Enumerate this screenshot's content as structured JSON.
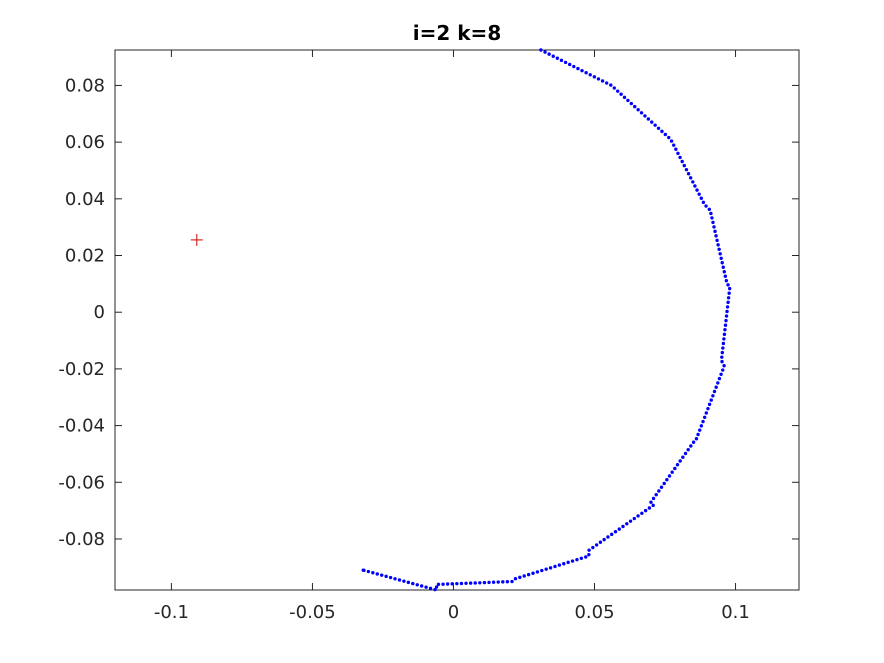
{
  "chart_data": {
    "type": "scatter",
    "title": "i=2 k=8",
    "xlabel": "",
    "ylabel": "",
    "xlim": [
      -0.12,
      0.1225
    ],
    "ylim": [
      -0.098,
      0.0925
    ],
    "xticks": [
      -0.1,
      -0.05,
      0,
      0.05,
      0.1
    ],
    "xtick_labels": [
      "-0.1",
      "-0.05",
      "0",
      "0.05",
      "0.1"
    ],
    "yticks": [
      -0.08,
      -0.06,
      -0.04,
      -0.02,
      0,
      0.02,
      0.04,
      0.06,
      0.08
    ],
    "ytick_labels": [
      "-0.08",
      "-0.06",
      "-0.04",
      "-0.02",
      "0",
      "0.02",
      "0.04",
      "0.06",
      "0.08"
    ],
    "grid": false,
    "colors": {
      "path": "#0000ff",
      "marker": "#cc0000",
      "axes": "#262626"
    },
    "series": [
      {
        "style": "dotted-path",
        "vertices": [
          [
            0.031,
            0.0925
          ],
          [
            0.056,
            0.08
          ],
          [
            0.077,
            0.061
          ],
          [
            0.089,
            0.038
          ],
          [
            0.091,
            0.036
          ],
          [
            0.097,
            0.01
          ],
          [
            0.098,
            0.009
          ],
          [
            0.095,
            -0.017
          ],
          [
            0.096,
            -0.019
          ],
          [
            0.086,
            -0.045
          ],
          [
            0.085,
            -0.046
          ],
          [
            0.07,
            -0.067
          ],
          [
            0.071,
            -0.068
          ],
          [
            0.048,
            -0.084
          ],
          [
            0.048,
            -0.086
          ],
          [
            0.022,
            -0.094
          ],
          [
            0.021,
            -0.095
          ],
          [
            -0.005,
            -0.096
          ],
          [
            -0.006,
            -0.096
          ],
          [
            -0.006,
            -0.098
          ],
          [
            -0.032,
            -0.091
          ]
        ]
      },
      {
        "style": "plus-marker",
        "points": [
          [
            -0.091,
            0.0255
          ]
        ]
      }
    ]
  }
}
